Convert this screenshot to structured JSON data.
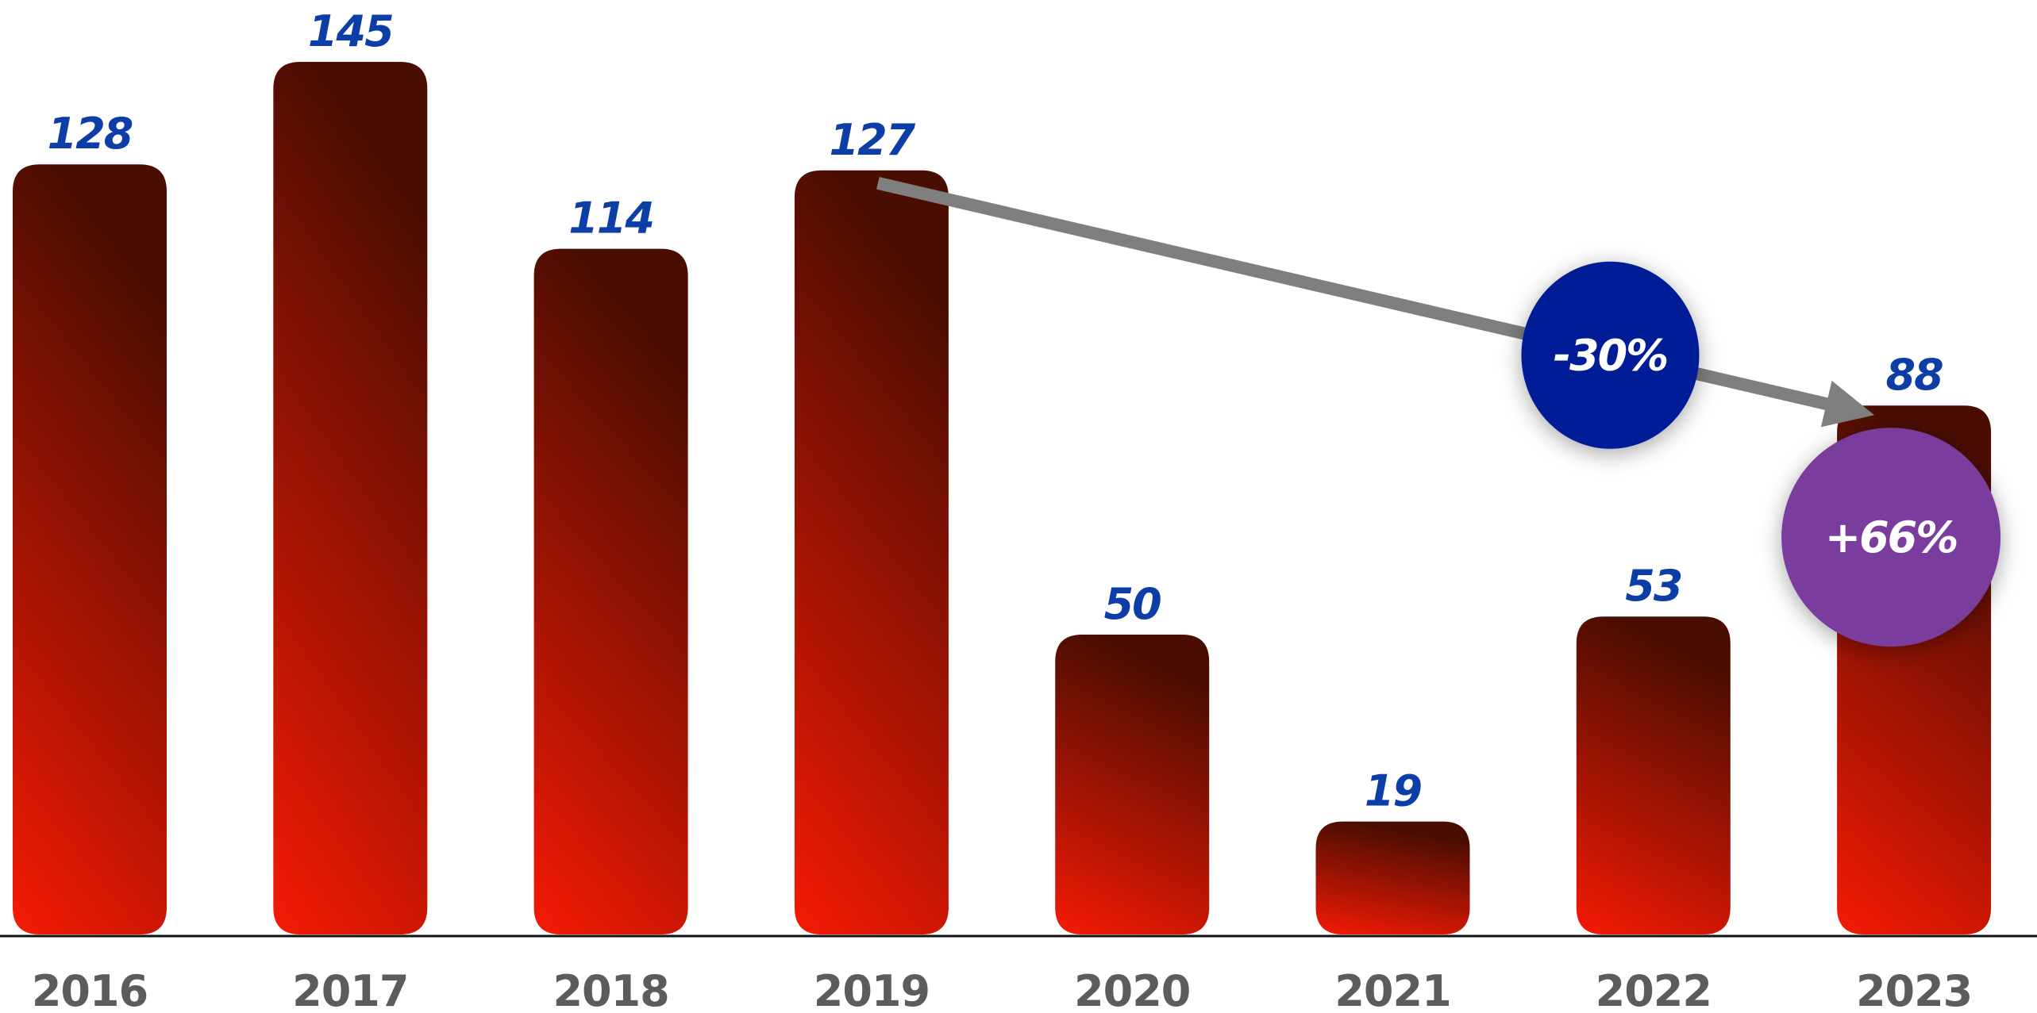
{
  "chart_data": {
    "type": "bar",
    "title": "",
    "xlabel": "",
    "ylabel": "",
    "categories": [
      "2016",
      "2017",
      "2018",
      "2019",
      "2020",
      "2021",
      "2022",
      "2023"
    ],
    "values": [
      128,
      145,
      114,
      127,
      50,
      19,
      53,
      88
    ],
    "data_labels": [
      "128",
      "145",
      "114",
      "127",
      "50",
      "19",
      "53",
      "88"
    ],
    "ylim": [
      0,
      145
    ],
    "grid": false,
    "legend": "none",
    "colors": {
      "bar_top": "#4a0d02",
      "bar_bottom": "#f51a05",
      "value_label": "#0d3ea8",
      "year_label": "#5c5c5c",
      "axis": "#111111",
      "arrow": "#7f7f7f"
    },
    "annotations": [
      {
        "kind": "trend-arrow",
        "from_category": "2019",
        "to_category": "2023",
        "text": "-30%",
        "badge_color": "#041a96",
        "text_color": "#ffffff"
      },
      {
        "kind": "badge",
        "category": "2023",
        "text": "+66%",
        "badge_color": "#7a3e9d",
        "text_color": "#ffffff"
      }
    ]
  }
}
